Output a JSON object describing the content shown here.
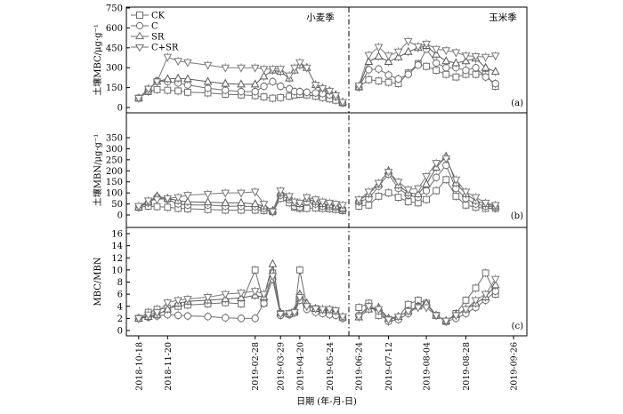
{
  "chart_data": {
    "type": "line",
    "xlabel": "日期 (年-月-日)",
    "x_ticks": [
      "2018-10-18",
      "2018-11-20",
      "2019-02-28",
      "2019-03-29",
      "2019-04-20",
      "2019-05-24",
      "2019-06-24",
      "2019-07-12",
      "2019-08-04",
      "2019-08-28",
      "2019-09-26"
    ],
    "seasons": [
      "小麦季",
      "玉米季"
    ],
    "legend": [
      {
        "label": "CK",
        "marker": "square"
      },
      {
        "label": "C",
        "marker": "circle"
      },
      {
        "label": "SR",
        "marker": "triangle-up"
      },
      {
        "label": "C+SR",
        "marker": "triangle-down"
      }
    ],
    "panels": [
      {
        "id": "a",
        "tag": "(a)",
        "ylabel": "土壤MBC/μg·g⁻¹",
        "ylim": [
          0,
          750
        ],
        "yticks": [
          0,
          150,
          300,
          450,
          600,
          750
        ],
        "wheat_x": [
          "2018-10-18",
          "2018-10-29",
          "2018-11-08",
          "2018-11-20",
          "2018-12-02",
          "2018-12-13",
          "2019-01-05",
          "2019-01-25",
          "2019-02-12",
          "2019-02-28",
          "2019-03-10",
          "2019-03-20",
          "2019-03-29",
          "2019-04-08",
          "2019-04-14",
          "2019-04-20",
          "2019-04-28",
          "2019-05-08",
          "2019-05-16",
          "2019-05-24",
          "2019-05-31",
          "2019-06-08"
        ],
        "maize_x": [
          "2019-06-24",
          "2019-06-30",
          "2019-07-06",
          "2019-07-12",
          "2019-07-18",
          "2019-07-24",
          "2019-07-30",
          "2019-08-04",
          "2019-08-10",
          "2019-08-16",
          "2019-08-22",
          "2019-08-28",
          "2019-09-03",
          "2019-09-09",
          "2019-09-15"
        ],
        "series": [
          {
            "name": "CK",
            "wheat": [
              70,
              120,
              135,
              130,
              125,
              115,
              110,
              100,
              95,
              90,
              80,
              70,
              75,
              85,
              95,
              100,
              95,
              85,
              75,
              65,
              55,
              35
            ],
            "maize": [
              155,
              210,
              200,
              190,
              180,
              260,
              330,
              310,
              280,
              250,
              230,
              250,
              250,
              250,
              160
            ]
          },
          {
            "name": "C",
            "wheat": [
              70,
              125,
              200,
              195,
              185,
              170,
              145,
              130,
              120,
              120,
              160,
              195,
              160,
              140,
              120,
              120,
              115,
              110,
              105,
              95,
              80,
              35
            ],
            "maize": [
              155,
              285,
              290,
              245,
              215,
              250,
              320,
              440,
              335,
              300,
              300,
              280,
              300,
              230,
              180
            ]
          },
          {
            "name": "SR",
            "wheat": [
              70,
              140,
              195,
              215,
              220,
              215,
              195,
              180,
              175,
              175,
              235,
              280,
              270,
              220,
              280,
              320,
              300,
              170,
              145,
              125,
              95,
              40
            ],
            "maize": [
              155,
              345,
              385,
              345,
              380,
              420,
              450,
              465,
              400,
              350,
              335,
              350,
              370,
              300,
              270
            ]
          },
          {
            "name": "C+SR",
            "wheat": [
              70,
              140,
              195,
              380,
              350,
              340,
              320,
              300,
              300,
              300,
              290,
              290,
              290,
              240,
              300,
              340,
              300,
              170,
              145,
              125,
              90,
              40
            ],
            "maize": [
              165,
              395,
              455,
              390,
              420,
              500,
              460,
              480,
              440,
              430,
              415,
              390,
              385,
              380,
              390
            ]
          }
        ]
      },
      {
        "id": "b",
        "tag": "(b)",
        "ylabel": "土壤MBN/μg·g⁻¹",
        "ylim": [
          0,
          350
        ],
        "yticks": [
          0,
          50,
          100,
          150,
          200,
          250,
          300,
          350
        ],
        "wheat_x": [
          "2018-10-18",
          "2018-10-29",
          "2018-11-08",
          "2018-11-20",
          "2018-12-02",
          "2018-12-13",
          "2019-01-05",
          "2019-01-25",
          "2019-02-12",
          "2019-02-28",
          "2019-03-10",
          "2019-03-20",
          "2019-03-29",
          "2019-04-08",
          "2019-04-14",
          "2019-04-20",
          "2019-04-28",
          "2019-05-08",
          "2019-05-16",
          "2019-05-24",
          "2019-05-31",
          "2019-06-08"
        ],
        "maize_x": [
          "2019-06-24",
          "2019-06-30",
          "2019-07-06",
          "2019-07-12",
          "2019-07-18",
          "2019-07-24",
          "2019-07-30",
          "2019-08-04",
          "2019-08-10",
          "2019-08-16",
          "2019-08-22",
          "2019-08-28",
          "2019-09-03",
          "2019-09-09",
          "2019-09-15"
        ],
        "series": [
          {
            "name": "CK",
            "wheat": [
              35,
              40,
              38,
              35,
              30,
              28,
              25,
              22,
              22,
              22,
              20,
              15,
              75,
              55,
              35,
              30,
              30,
              32,
              30,
              28,
              25,
              20
            ],
            "maize": [
              40,
              45,
              85,
              100,
              80,
              60,
              55,
              70,
              110,
              160,
              85,
              45,
              35,
              30,
              30
            ]
          },
          {
            "name": "C",
            "wheat": [
              35,
              55,
              80,
              70,
              50,
              45,
              45,
              40,
              40,
              38,
              30,
              15,
              90,
              70,
              40,
              35,
              60,
              50,
              40,
              38,
              35,
              25
            ],
            "maize": [
              60,
              75,
              130,
              185,
              120,
              90,
              80,
              110,
              170,
              225,
              120,
              75,
              50,
              40,
              35
            ]
          },
          {
            "name": "SR",
            "wheat": [
              35,
              60,
              85,
              75,
              65,
              60,
              58,
              55,
              55,
              50,
              40,
              20,
              100,
              80,
              55,
              50,
              75,
              60,
              50,
              45,
              40,
              30
            ],
            "maize": [
              65,
              95,
              140,
              200,
              135,
              100,
              95,
              140,
              215,
              265,
              145,
              95,
              65,
              50,
              40
            ]
          },
          {
            "name": "C+SR",
            "wheat": [
              40,
              65,
              70,
              75,
              80,
              90,
              95,
              100,
              100,
              105,
              50,
              15,
              110,
              85,
              60,
              55,
              80,
              70,
              60,
              55,
              50,
              45
            ],
            "maize": [
              70,
              105,
              145,
              195,
              150,
              115,
              120,
              175,
              235,
              255,
              160,
              105,
              80,
              55,
              45
            ]
          }
        ]
      },
      {
        "id": "c",
        "tag": "(c)",
        "ylabel": "MBC/MBN",
        "ylim": [
          0,
          16
        ],
        "yticks": [
          0,
          2,
          4,
          6,
          8,
          10,
          12,
          14,
          16
        ],
        "wheat_x": [
          "2018-10-18",
          "2018-10-29",
          "2018-11-08",
          "2018-11-20",
          "2018-12-02",
          "2018-12-13",
          "2019-01-05",
          "2019-01-25",
          "2019-02-12",
          "2019-02-28",
          "2019-03-10",
          "2019-03-20",
          "2019-03-29",
          "2019-04-08",
          "2019-04-14",
          "2019-04-20",
          "2019-04-28",
          "2019-05-08",
          "2019-05-16",
          "2019-05-24",
          "2019-05-31",
          "2019-06-08"
        ],
        "maize_x": [
          "2019-06-24",
          "2019-06-30",
          "2019-07-06",
          "2019-07-12",
          "2019-07-18",
          "2019-07-24",
          "2019-07-30",
          "2019-08-04",
          "2019-08-10",
          "2019-08-16",
          "2019-08-22",
          "2019-08-28",
          "2019-09-03",
          "2019-09-09",
          "2019-09-15"
        ],
        "series": [
          {
            "name": "CK",
            "wheat": [
              2,
              3,
              3.5,
              3.7,
              4,
              4.2,
              4.4,
              4.6,
              4.4,
              10,
              4.5,
              9.5,
              2.8,
              2.8,
              3,
              10,
              4,
              3.6,
              3.4,
              3.2,
              3,
              2.2
            ],
            "maize": [
              3.8,
              4.5,
              2.5,
              1.8,
              2.2,
              4.3,
              5,
              4.5,
              2.5,
              1.5,
              2.8,
              5,
              7,
              9.5,
              6
            ]
          },
          {
            "name": "C",
            "wheat": [
              2,
              2.2,
              2.4,
              2.6,
              2.5,
              2.4,
              2.3,
              2.1,
              2,
              2,
              4.5,
              8.5,
              2.5,
              2.6,
              3,
              5,
              3.5,
              3,
              2.8,
              2.6,
              2.5,
              2
            ],
            "maize": [
              2.5,
              4,
              3.2,
              1.5,
              1.8,
              2.8,
              4,
              4.3,
              2.5,
              1.5,
              2,
              2.8,
              3.8,
              5,
              6.5
            ]
          },
          {
            "name": "SR",
            "wheat": [
              2,
              2.3,
              2.6,
              3.5,
              4.5,
              4.8,
              5,
              5.2,
              5.4,
              5.8,
              5.5,
              11,
              2.9,
              2.7,
              3.2,
              6,
              4.5,
              3.6,
              3.4,
              3.4,
              3.2,
              2.2
            ],
            "maize": [
              2.2,
              3.5,
              3.8,
              2,
              2.3,
              3.2,
              4,
              4.5,
              2.5,
              1.6,
              2.6,
              3.5,
              4.5,
              5.5,
              7.5
            ]
          },
          {
            "name": "C+SR",
            "wheat": [
              2,
              2.6,
              3,
              4.6,
              5,
              5.2,
              5.5,
              6,
              6.2,
              6.5,
              6,
              9,
              2.7,
              2.8,
              3,
              5.5,
              4,
              3.6,
              3.5,
              3.5,
              3.3,
              2.3
            ],
            "maize": [
              2.3,
              4,
              3.5,
              1.8,
              2.3,
              3.2,
              3.8,
              3.8,
              2.5,
              1.6,
              2.5,
              3.5,
              5,
              6,
              8.5
            ]
          }
        ]
      }
    ]
  }
}
